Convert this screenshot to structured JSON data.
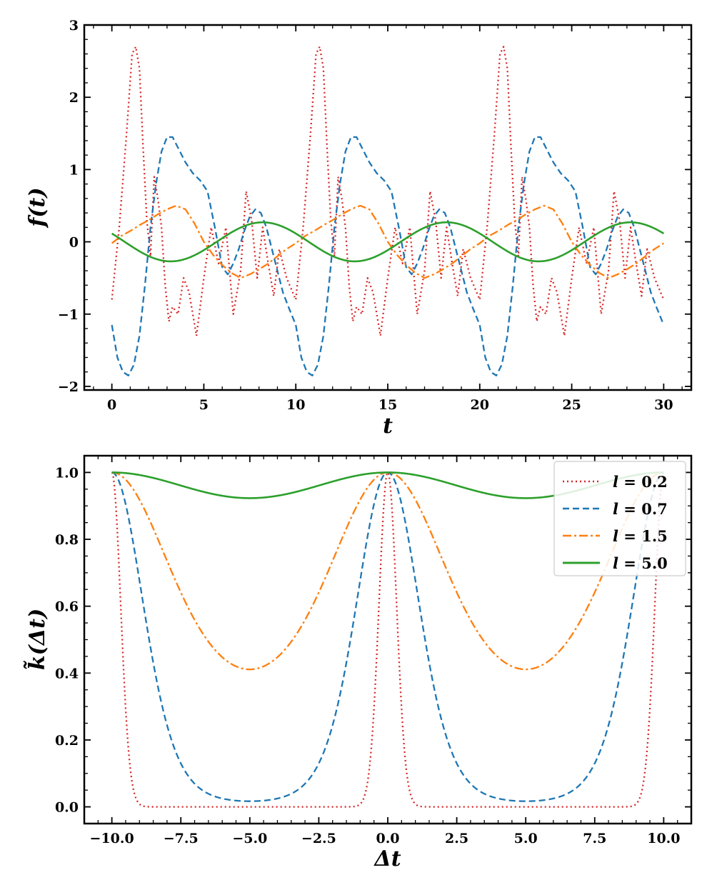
{
  "chart_data": [
    {
      "type": "line",
      "panel": "top",
      "xlabel": "t",
      "ylabel": "f(t)",
      "xlim": [
        -1.5,
        31.5
      ],
      "ylim": [
        -2.05,
        3.0
      ],
      "xticks": [
        0,
        5,
        10,
        15,
        20,
        25,
        30
      ],
      "xtick_labels": [
        "0",
        "5",
        "10",
        "15",
        "20",
        "25",
        "30"
      ],
      "yticks": [
        -2,
        -1,
        0,
        1,
        2,
        3
      ],
      "ytick_labels": [
        "−2",
        "−1",
        "0",
        "1",
        "2",
        "3"
      ],
      "x_minor_step": 1,
      "y_minor_step": 0.2,
      "period": 10,
      "series": [
        {
          "name": "l = 0.2",
          "color": "#d62728",
          "style": "dotted",
          "x": [
            0,
            0.4,
            0.8,
            1.1,
            1.3,
            1.5,
            1.7,
            1.9,
            2.1,
            2.3,
            2.5,
            2.7,
            2.9,
            3.1,
            3.3,
            3.6,
            3.9,
            4.2,
            4.6,
            5.0,
            5.4,
            5.8,
            6.2,
            6.6,
            7.0,
            7.3,
            7.6,
            7.9,
            8.2,
            8.5,
            8.8,
            9.1,
            9.5,
            10.0
          ],
          "y": [
            -0.8,
            0.2,
            1.5,
            2.6,
            2.7,
            2.4,
            1.3,
            0.3,
            -0.2,
            0.9,
            0.6,
            0.2,
            -0.6,
            -1.1,
            -0.9,
            -1.0,
            -0.5,
            -0.7,
            -1.3,
            -0.5,
            0.2,
            -0.3,
            0.2,
            -1.0,
            -0.4,
            0.7,
            0.3,
            -0.5,
            0.2,
            -0.3,
            -0.75,
            -0.1,
            -0.5,
            -0.8
          ]
        },
        {
          "name": "l = 0.7",
          "color": "#1f77b4",
          "style": "dashed",
          "x": [
            0,
            0.3,
            0.6,
            0.9,
            1.2,
            1.5,
            1.8,
            2.1,
            2.4,
            2.7,
            3.0,
            3.3,
            3.6,
            4.0,
            4.4,
            4.8,
            5.2,
            5.6,
            6.0,
            6.3,
            6.6,
            6.9,
            7.2,
            7.5,
            7.8,
            8.1,
            8.4,
            8.7,
            9.0,
            9.3,
            9.6,
            10.0
          ],
          "y": [
            -1.15,
            -1.6,
            -1.8,
            -1.85,
            -1.7,
            -1.3,
            -0.6,
            0.2,
            0.8,
            1.25,
            1.45,
            1.45,
            1.3,
            1.1,
            0.95,
            0.85,
            0.7,
            0.2,
            -0.35,
            -0.45,
            -0.3,
            -0.1,
            0.15,
            0.35,
            0.45,
            0.4,
            0.2,
            -0.1,
            -0.4,
            -0.7,
            -0.9,
            -1.15
          ]
        },
        {
          "name": "l = 1.5",
          "color": "#ff7f0e",
          "style": "dashdot",
          "x": [
            0,
            0.5,
            1.0,
            1.5,
            2.0,
            2.5,
            3.0,
            3.5,
            4.0,
            4.5,
            5.0,
            5.5,
            6.0,
            6.5,
            7.0,
            7.5,
            8.0,
            8.5,
            9.0,
            9.5,
            10.0
          ],
          "y": [
            -0.02,
            0.08,
            0.15,
            0.23,
            0.3,
            0.38,
            0.45,
            0.5,
            0.45,
            0.25,
            0.0,
            -0.18,
            -0.32,
            -0.43,
            -0.5,
            -0.45,
            -0.38,
            -0.3,
            -0.2,
            -0.1,
            -0.02
          ]
        },
        {
          "name": "l = 5.0",
          "color": "#2ca02c",
          "style": "solid",
          "formula": "0.27*cos(2*pi*(t-8.2)/10)",
          "amplitude": 0.27,
          "phase_t": 8.2
        }
      ]
    },
    {
      "type": "line",
      "panel": "bottom",
      "xlabel": "Δt",
      "ylabel": "k̃(Δt)",
      "xlim": [
        -11.0,
        11.0
      ],
      "ylim": [
        -0.05,
        1.05
      ],
      "xticks": [
        -10.0,
        -7.5,
        -5.0,
        -2.5,
        0.0,
        2.5,
        5.0,
        7.5,
        10.0
      ],
      "xtick_labels": [
        "−10.0",
        "−7.5",
        "−5.0",
        "−2.5",
        "0.0",
        "2.5",
        "5.0",
        "7.5",
        "10.0"
      ],
      "yticks": [
        0.0,
        0.2,
        0.4,
        0.6,
        0.8,
        1.0
      ],
      "ytick_labels": [
        "0.0",
        "0.2",
        "0.4",
        "0.6",
        "0.8",
        "1.0"
      ],
      "x_minor_step": 0.5,
      "y_minor_step": 0.05,
      "formula": "exp(-2*sin(pi*dt/10)^2 / l^2)",
      "period": 10,
      "legend_position": "top-right",
      "series": [
        {
          "name": "l = 0.2",
          "l_var": "l",
          "l_val": "0.2",
          "lengthscale": 0.2,
          "color": "#d62728",
          "style": "dotted"
        },
        {
          "name": "l = 0.7",
          "l_var": "l",
          "l_val": "0.7",
          "lengthscale": 0.7,
          "color": "#1f77b4",
          "style": "dashed"
        },
        {
          "name": "l = 1.5",
          "l_var": "l",
          "l_val": "1.5",
          "lengthscale": 1.5,
          "color": "#ff7f0e",
          "style": "dashdot"
        },
        {
          "name": "l = 5.0",
          "l_var": "l",
          "l_val": "5.0",
          "lengthscale": 5.0,
          "color": "#2ca02c",
          "style": "solid"
        }
      ]
    }
  ]
}
